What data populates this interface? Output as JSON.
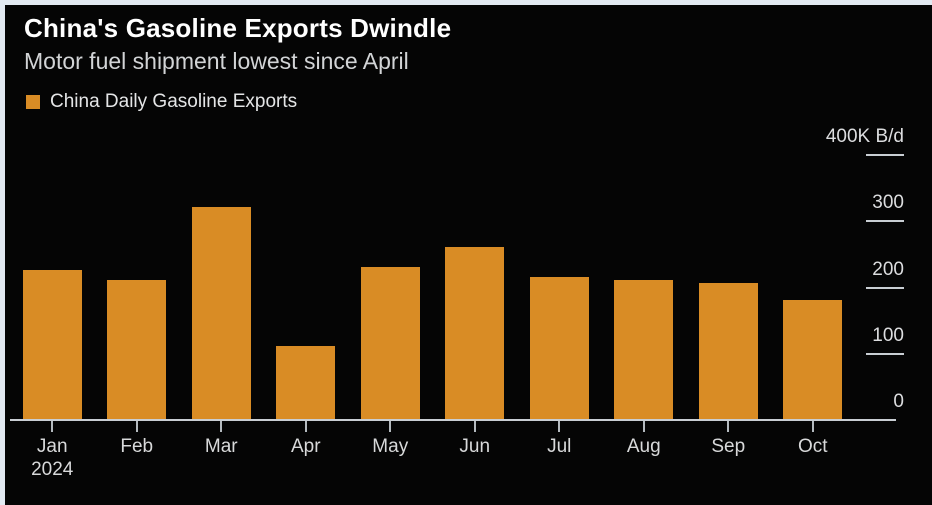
{
  "chart_data": {
    "type": "bar",
    "title": "China's Gasoline Exports Dwindle",
    "subtitle": "Motor fuel shipment lowest since April",
    "legend": "China Daily Gasoline Exports",
    "categories": [
      "Jan",
      "Feb",
      "Mar",
      "Apr",
      "May",
      "Jun",
      "Jul",
      "Aug",
      "Sep",
      "Oct"
    ],
    "x_year_label": {
      "category": "Jan",
      "text": "2024"
    },
    "values": [
      225,
      210,
      320,
      110,
      230,
      260,
      215,
      210,
      205,
      180
    ],
    "unit": "K B/d",
    "ylim": [
      0,
      400
    ],
    "yticks": [
      {
        "value": 400,
        "label": "400K B/d"
      },
      {
        "value": 300,
        "label": "300"
      },
      {
        "value": 200,
        "label": "200"
      },
      {
        "value": 100,
        "label": "100"
      },
      {
        "value": 0,
        "label": "0"
      }
    ],
    "grid": false,
    "legend_position": "top-left",
    "y_axis_position": "right",
    "bar_color": "#d98c25"
  },
  "colors": {
    "frame_bg": "#e3eaf2",
    "panel_bg": "#050505",
    "title": "#ffffff",
    "subtitle": "#d2d4d6",
    "axis_text": "#dcdddf",
    "axis_line": "#c9ced3"
  }
}
